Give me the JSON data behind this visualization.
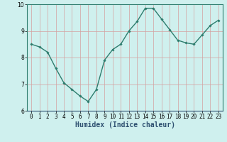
{
  "x": [
    0,
    1,
    2,
    3,
    4,
    5,
    6,
    7,
    8,
    9,
    10,
    11,
    12,
    13,
    14,
    15,
    16,
    17,
    18,
    19,
    20,
    21,
    22,
    23
  ],
  "y": [
    8.5,
    8.4,
    8.2,
    7.6,
    7.05,
    6.8,
    6.55,
    6.35,
    6.8,
    7.9,
    8.3,
    8.5,
    9.0,
    9.35,
    9.85,
    9.85,
    9.45,
    9.05,
    8.65,
    8.55,
    8.5,
    8.85,
    9.2,
    9.4
  ],
  "line_color": "#2e7d6e",
  "marker": "D",
  "markersize": 1.8,
  "linewidth": 1.0,
  "background_color": "#cff0ee",
  "grid_color": "#d4a0a0",
  "grid_linewidth": 0.5,
  "xlabel": "Humidex (Indice chaleur)",
  "xlabel_fontsize": 7,
  "xlabel_color": "#2e5070",
  "xlabel_bold": true,
  "ylim": [
    6,
    10
  ],
  "xlim": [
    -0.5,
    23.5
  ],
  "yticks": [
    6,
    7,
    8,
    9,
    10
  ],
  "xticks": [
    0,
    1,
    2,
    3,
    4,
    5,
    6,
    7,
    8,
    9,
    10,
    11,
    12,
    13,
    14,
    15,
    16,
    17,
    18,
    19,
    20,
    21,
    22,
    23
  ],
  "tick_fontsize": 5.5,
  "tick_color": "#000000",
  "spine_color": "#2e7d6e",
  "left_spine_color": "#2e7d6e",
  "bottom_spine_color": "#2e5070"
}
